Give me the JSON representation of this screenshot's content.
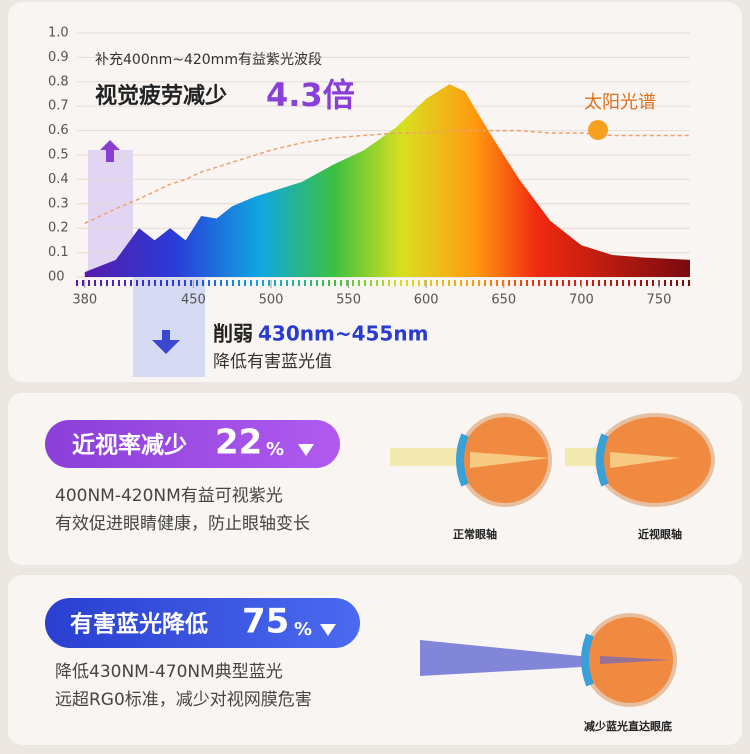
{
  "chart_data": {
    "type": "area",
    "x": [
      380,
      400,
      415,
      425,
      435,
      445,
      455,
      465,
      475,
      490,
      500,
      520,
      540,
      560,
      580,
      600,
      615,
      625,
      640,
      660,
      680,
      700,
      720,
      740,
      770
    ],
    "series": [
      {
        "color": "#c01a10",
        "values": [
          0.02,
          0.07,
          0.2,
          0.15,
          0.2,
          0.15,
          0.25,
          0.24,
          0.29,
          0.33,
          0.35,
          0.39,
          0.46,
          0.52,
          0.61,
          0.73,
          0.79,
          0.76,
          0.6,
          0.4,
          0.23,
          0.13,
          0.09,
          0.08,
          0.07
        ]
      },
      {
        "name": "太阳光谱",
        "color": "#f0a070",
        "values": [
          0.22,
          0.28,
          0.32,
          0.35,
          0.38,
          0.4,
          0.43,
          0.45,
          0.47,
          0.5,
          0.52,
          0.55,
          0.57,
          0.58,
          0.59,
          0.59,
          0.6,
          0.6,
          0.6,
          0.6,
          0.59,
          0.59,
          0.58,
          0.58,
          0.58
        ]
      }
    ],
    "xlim": [
      375,
      770
    ],
    "ylim": [
      0,
      1
    ],
    "xticks": [
      380,
      450,
      500,
      550,
      600,
      650,
      700,
      750
    ],
    "yticks": [
      {
        "value": 0,
        "label": "00"
      },
      0.1,
      0.2,
      0.3,
      0.4,
      0.5,
      0.6,
      0.7,
      0.8,
      0.9,
      {
        "value": 1,
        "label": "1.0"
      }
    ],
    "grid": true,
    "annotations": {
      "note": "补充400nm~420mm有益紫光波段",
      "headline": "视觉疲劳减少",
      "headline_value": "4.3倍",
      "weaken": "削弱",
      "weaken_range": "430nm~455nm",
      "weaken_note": "降低有害蓝光值"
    }
  },
  "myopia": {
    "title": "近视率减少",
    "value": 22,
    "unit": "%",
    "lines": [
      "400NM-420NM有益可视紫光",
      "有效促进眼睛健康，防止眼轴变长"
    ],
    "eye_labels": [
      "正常眼轴",
      "近视眼轴"
    ]
  },
  "bluelight": {
    "title": "有害蓝光降低",
    "value": 75,
    "unit": "%",
    "lines": [
      "降低430NM-470NM典型蓝光",
      "远超RG0标准，减少对视网膜危害"
    ],
    "eye_label": "减少蓝光直达眼底"
  }
}
